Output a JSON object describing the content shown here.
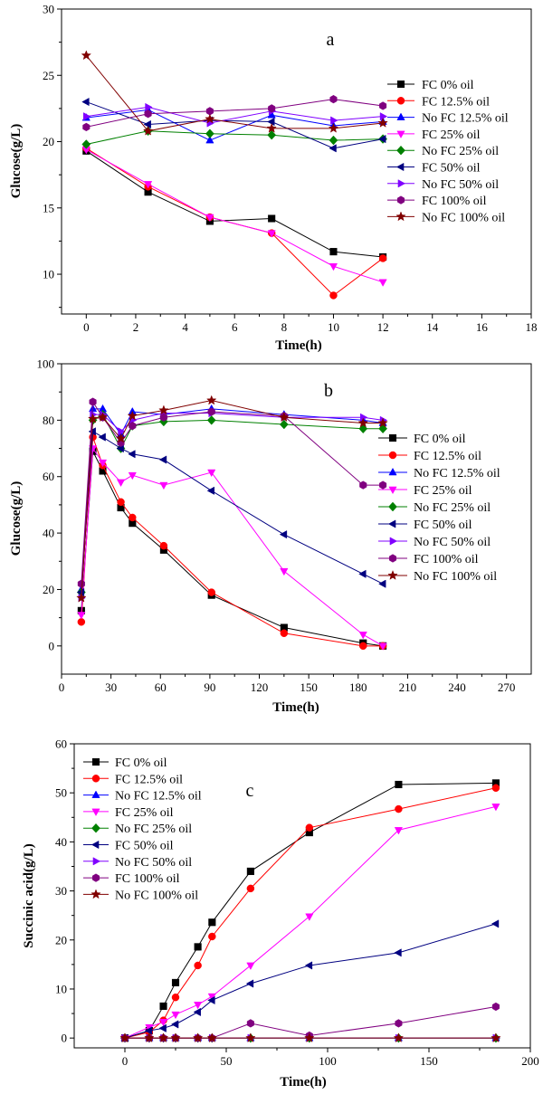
{
  "colors": {
    "FC 0% oil": "#000000",
    "FC 12.5% oil": "#ff0000",
    "No FC 12.5% oil": "#0000ff",
    "FC 25% oil": "#ff00ff",
    "No FC 25% oil": "#008000",
    "FC 50% oil": "#000080",
    "No FC 50% oil": "#8000ff",
    "FC 100% oil": "#800080",
    "No FC 100% oil": "#800000"
  },
  "markers": {
    "FC 0% oil": "square",
    "FC 12.5% oil": "circle",
    "No FC 12.5% oil": "triangle-up",
    "FC 25% oil": "triangle-down",
    "No FC 25% oil": "diamond",
    "FC 50% oil": "triangle-left",
    "No FC 50% oil": "triangle-right",
    "FC 100% oil": "hexagon",
    "No FC 100% oil": "star"
  },
  "chart_data": [
    {
      "type": "line",
      "panel_label": "a",
      "xlabel": "Time(h)",
      "ylabel": "Glucose(g/L)",
      "xlim": [
        -1,
        18
      ],
      "ylim": [
        7,
        30
      ],
      "xticks": [
        0,
        2,
        4,
        6,
        8,
        10,
        12,
        14,
        16,
        18
      ],
      "yticks": [
        10,
        15,
        20,
        25,
        30
      ],
      "legend": "right",
      "series": [
        {
          "name": "FC 0% oil",
          "x": [
            0,
            2.5,
            5,
            7.5,
            10,
            12
          ],
          "y": [
            19.3,
            16.2,
            14.0,
            14.2,
            11.7,
            11.3
          ]
        },
        {
          "name": "FC 12.5% oil",
          "x": [
            0,
            2.5,
            5,
            7.5,
            10,
            12
          ],
          "y": [
            19.5,
            16.6,
            14.3,
            13.1,
            8.4,
            11.2
          ]
        },
        {
          "name": "No FC 12.5% oil",
          "x": [
            0,
            2.5,
            5,
            7.5,
            10,
            12
          ],
          "y": [
            21.8,
            22.4,
            20.1,
            22.0,
            21.2,
            21.5
          ]
        },
        {
          "name": "FC 25% oil",
          "x": [
            0,
            2.5,
            5,
            7.5,
            10,
            12
          ],
          "y": [
            19.4,
            16.8,
            14.3,
            13.1,
            10.6,
            9.4
          ]
        },
        {
          "name": "No FC 25% oil",
          "x": [
            0,
            2.5,
            5,
            7.5,
            10,
            12
          ],
          "y": [
            19.8,
            20.8,
            20.6,
            20.5,
            20.1,
            20.2
          ]
        },
        {
          "name": "FC 50% oil",
          "x": [
            0,
            2.5,
            5,
            7.5,
            10,
            12
          ],
          "y": [
            23.0,
            21.3,
            21.6,
            21.5,
            19.5,
            20.2
          ]
        },
        {
          "name": "No FC 50% oil",
          "x": [
            0,
            2.5,
            5,
            7.5,
            10,
            12
          ],
          "y": [
            21.9,
            22.6,
            21.4,
            22.3,
            21.6,
            21.9
          ]
        },
        {
          "name": "FC 100% oil",
          "x": [
            0,
            2.5,
            5,
            7.5,
            10,
            12
          ],
          "y": [
            21.1,
            22.1,
            22.3,
            22.5,
            23.2,
            22.7
          ]
        },
        {
          "name": "No FC 100% oil",
          "x": [
            0,
            2.5,
            5,
            7.5,
            10,
            12
          ],
          "y": [
            26.5,
            20.8,
            21.7,
            21.0,
            21.0,
            21.4
          ]
        }
      ]
    },
    {
      "type": "line",
      "panel_label": "b",
      "xlabel": "Time(h)",
      "ylabel": "Glucose(g/L)",
      "xlim": [
        0,
        285
      ],
      "ylim": [
        -10,
        100
      ],
      "xticks": [
        0,
        30,
        60,
        90,
        120,
        150,
        180,
        210,
        240,
        270
      ],
      "yticks": [
        0,
        20,
        40,
        60,
        80,
        100
      ],
      "legend": "right",
      "series": [
        {
          "name": "FC 0% oil",
          "x": [
            12,
            19,
            25,
            36,
            43,
            62,
            91,
            135,
            183,
            195
          ],
          "y": [
            12.5,
            69,
            62,
            49,
            43.5,
            34,
            18,
            6.5,
            1,
            0
          ]
        },
        {
          "name": "FC 12.5% oil",
          "x": [
            12,
            19,
            25,
            36,
            43,
            62,
            91,
            135,
            183,
            195
          ],
          "y": [
            8.5,
            74,
            64,
            51,
            45.5,
            35.5,
            19,
            4.5,
            0,
            0
          ]
        },
        {
          "name": "No FC 12.5% oil",
          "x": [
            12,
            19,
            25,
            36,
            43,
            62,
            91,
            135,
            183,
            195
          ],
          "y": [
            20,
            84,
            84,
            75,
            83,
            82,
            84,
            82,
            80,
            79
          ]
        },
        {
          "name": "FC 25% oil",
          "x": [
            12,
            19,
            25,
            36,
            43,
            62,
            91,
            135,
            183,
            195
          ],
          "y": [
            11,
            70,
            65,
            58,
            60.5,
            57,
            61.5,
            26.5,
            4,
            0
          ]
        },
        {
          "name": "No FC 25% oil",
          "x": [
            12,
            19,
            25,
            36,
            43,
            62,
            91,
            135,
            183,
            195
          ],
          "y": [
            19,
            80,
            82,
            70,
            78,
            79.5,
            80,
            78.5,
            77,
            77
          ]
        },
        {
          "name": "FC 50% oil",
          "x": [
            12,
            19,
            25,
            36,
            43,
            62,
            91,
            135,
            183,
            195
          ],
          "y": [
            19,
            76,
            74,
            70,
            68,
            66,
            55,
            39.5,
            25.5,
            22
          ]
        },
        {
          "name": "No FC 50% oil",
          "x": [
            12,
            19,
            25,
            36,
            43,
            62,
            91,
            135,
            183,
            195
          ],
          "y": [
            17,
            82,
            82,
            76,
            80,
            82.5,
            82.5,
            81,
            81,
            80
          ]
        },
        {
          "name": "FC 100% oil",
          "x": [
            12,
            19,
            25,
            36,
            43,
            62,
            91,
            135,
            183,
            195
          ],
          "y": [
            22,
            86.5,
            81,
            72,
            78,
            81,
            83,
            81.5,
            57,
            57
          ]
        },
        {
          "name": "No FC 100% oil",
          "x": [
            12,
            19,
            25,
            36,
            43,
            62,
            91,
            135,
            183,
            195
          ],
          "y": [
            17,
            80.5,
            81,
            73.5,
            81.5,
            83.5,
            87,
            81,
            79,
            79
          ]
        }
      ]
    },
    {
      "type": "line",
      "panel_label": "c",
      "xlabel": "Time(h)",
      "ylabel": "Succinic acid(g/L)",
      "xlim": [
        -25,
        200
      ],
      "ylim": [
        -2,
        60
      ],
      "xticks": [
        0,
        50,
        100,
        150,
        200
      ],
      "yticks": [
        0,
        10,
        20,
        30,
        40,
        50,
        60
      ],
      "legend": "top-left",
      "series": [
        {
          "name": "FC 0% oil",
          "x": [
            0,
            12,
            19,
            25,
            36,
            43,
            62,
            91,
            135,
            183
          ],
          "y": [
            0,
            1.5,
            6.5,
            11.3,
            18.6,
            23.6,
            34,
            41.9,
            51.7,
            52
          ]
        },
        {
          "name": "FC 12.5% oil",
          "x": [
            0,
            12,
            19,
            25,
            36,
            43,
            62,
            91,
            135,
            183
          ],
          "y": [
            0,
            1.2,
            3.6,
            8.3,
            14.8,
            20.7,
            30.5,
            42.9,
            46.7,
            51
          ]
        },
        {
          "name": "No FC 12.5% oil",
          "x": [
            0,
            12,
            19,
            25,
            36,
            43,
            62,
            91,
            135,
            183
          ],
          "y": [
            0,
            0,
            0,
            0,
            0,
            0,
            0,
            0,
            0,
            0
          ]
        },
        {
          "name": "FC 25% oil",
          "x": [
            0,
            12,
            19,
            25,
            36,
            43,
            62,
            91,
            135,
            183
          ],
          "y": [
            0,
            2.2,
            3.3,
            4.8,
            6.8,
            8.5,
            14.8,
            24.8,
            42.4,
            47.2
          ]
        },
        {
          "name": "No FC 25% oil",
          "x": [
            0,
            12,
            19,
            25,
            36,
            43,
            62,
            91,
            135,
            183
          ],
          "y": [
            0,
            0,
            0,
            0,
            0,
            0,
            0,
            0,
            0,
            0
          ]
        },
        {
          "name": "FC 50% oil",
          "x": [
            0,
            12,
            19,
            25,
            36,
            43,
            62,
            91,
            135,
            183
          ],
          "y": [
            0,
            1.5,
            2.0,
            2.8,
            5.3,
            7.7,
            11.1,
            14.8,
            17.4,
            23.3
          ]
        },
        {
          "name": "No FC 50% oil",
          "x": [
            0,
            12,
            19,
            25,
            36,
            43,
            62,
            91,
            135,
            183
          ],
          "y": [
            0,
            0,
            0,
            0,
            0,
            0,
            0,
            0,
            0,
            0
          ]
        },
        {
          "name": "FC 100% oil",
          "x": [
            0,
            12,
            19,
            25,
            36,
            43,
            62,
            91,
            135,
            183
          ],
          "y": [
            0,
            0,
            0,
            0,
            0,
            0,
            3.0,
            0.5,
            3.0,
            6.4
          ]
        },
        {
          "name": "No FC 100% oil",
          "x": [
            0,
            12,
            19,
            25,
            36,
            43,
            62,
            91,
            135,
            183
          ],
          "y": [
            0,
            0,
            0,
            0,
            0,
            0,
            0,
            0,
            0,
            0
          ]
        }
      ]
    }
  ]
}
